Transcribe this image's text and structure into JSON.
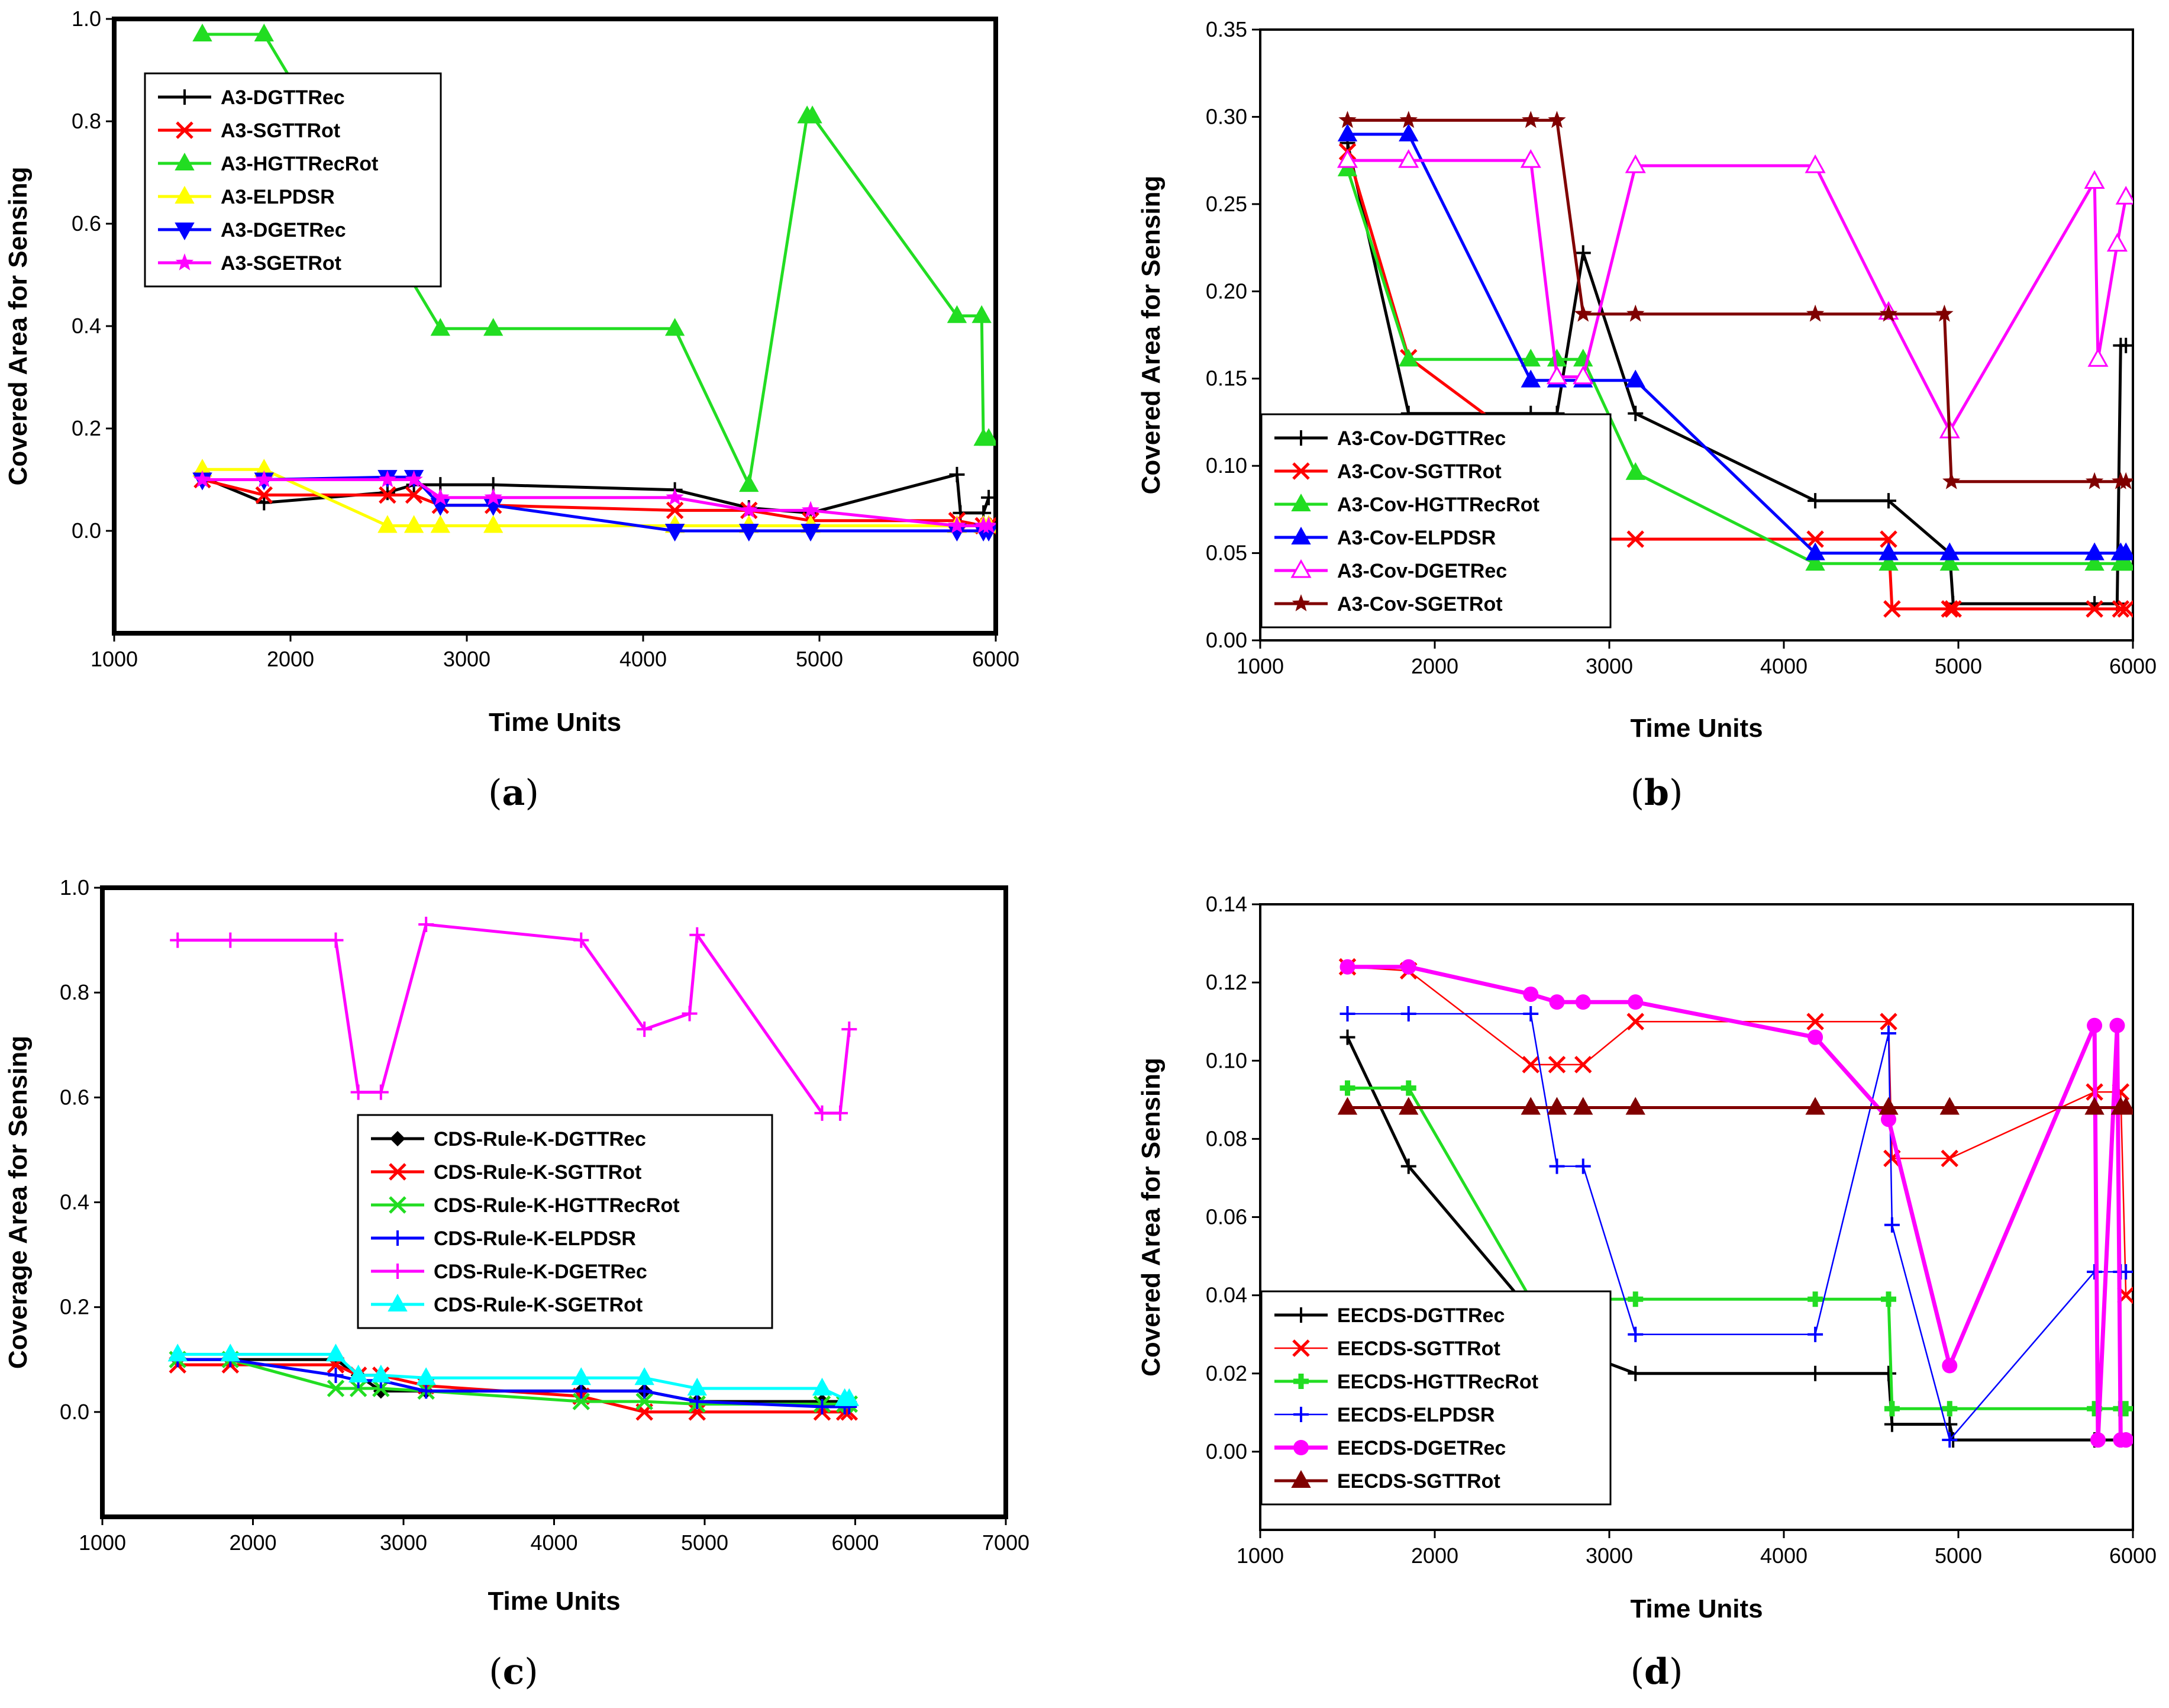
{
  "chart_data": [
    {
      "id": "a",
      "type": "line",
      "panel_label": "a",
      "xlabel": "Time Units",
      "ylabel": "Covered Area for Sensing",
      "xlim": [
        1000,
        6000
      ],
      "ylim": [
        -0.2,
        1.0
      ],
      "xticks": [
        1000,
        2000,
        3000,
        4000,
        5000,
        6000
      ],
      "yticks": [
        0.0,
        0.2,
        0.4,
        0.6,
        0.8,
        1.0
      ],
      "ytick_labels": [
        "0.0",
        "0.2",
        "0.4",
        "0.6",
        "0.8",
        "1.0"
      ],
      "legend_position": "top-left",
      "series": [
        {
          "name": "A3-DGTTRec",
          "color": "#000000",
          "marker": "plus",
          "x": [
            1500,
            1850,
            2550,
            2700,
            2850,
            3150,
            4180,
            4600,
            4950,
            5780,
            5800,
            5930,
            5960
          ],
          "y": [
            0.105,
            0.055,
            0.075,
            0.09,
            0.09,
            0.09,
            0.08,
            0.045,
            0.035,
            0.11,
            0.035,
            0.035,
            0.065
          ]
        },
        {
          "name": "A3-SGTTRot",
          "color": "#ff0000",
          "marker": "x",
          "x": [
            1500,
            1850,
            2550,
            2700,
            2850,
            3150,
            4180,
            4600,
            4950,
            5780,
            5930,
            5960
          ],
          "y": [
            0.1,
            0.07,
            0.07,
            0.07,
            0.05,
            0.05,
            0.04,
            0.04,
            0.02,
            0.02,
            0.01,
            0.01
          ]
        },
        {
          "name": "A3-HGTTRecRot",
          "color": "#22dd22",
          "marker": "triangle-up",
          "x": [
            1500,
            1850,
            2850,
            3150,
            4180,
            4600,
            4930,
            4960,
            5780,
            5920,
            5930,
            5960
          ],
          "y": [
            0.97,
            0.97,
            0.395,
            0.395,
            0.395,
            0.09,
            0.81,
            0.81,
            0.42,
            0.42,
            0.18,
            0.18
          ]
        },
        {
          "name": "A3-ELPDSR",
          "color": "#ffff00",
          "marker": "triangle-up",
          "x": [
            1500,
            1850,
            2550,
            2700,
            2850,
            3150,
            4180,
            4600,
            4950,
            5780,
            5930,
            5960
          ],
          "y": [
            0.12,
            0.12,
            0.01,
            0.01,
            0.01,
            0.01,
            0.01,
            0.01,
            0.01,
            0.01,
            0.01,
            0.01
          ]
        },
        {
          "name": "A3-DGETRec",
          "color": "#0000ff",
          "marker": "triangle-down",
          "x": [
            1500,
            1850,
            2550,
            2700,
            2850,
            3150,
            4180,
            4600,
            4950,
            5780,
            5930,
            5960
          ],
          "y": [
            0.1,
            0.1,
            0.105,
            0.105,
            0.05,
            0.05,
            0.0,
            0.0,
            0.0,
            0.0,
            0.0,
            0.0
          ]
        },
        {
          "name": "A3-SGETRot",
          "color": "#ff00ff",
          "marker": "star",
          "x": [
            1500,
            1850,
            2550,
            2700,
            2850,
            3150,
            4180,
            4600,
            4950,
            5780,
            5930,
            5960
          ],
          "y": [
            0.1,
            0.1,
            0.1,
            0.1,
            0.065,
            0.065,
            0.065,
            0.04,
            0.04,
            0.01,
            0.01,
            0.01
          ]
        }
      ]
    },
    {
      "id": "b",
      "type": "line",
      "panel_label": "b",
      "xlabel": "Time Units",
      "ylabel": "Covered Area for Sensing",
      "xlim": [
        1000,
        6000
      ],
      "ylim": [
        0.0,
        0.35
      ],
      "xticks": [
        1000,
        2000,
        3000,
        4000,
        5000,
        6000
      ],
      "yticks": [
        0.0,
        0.05,
        0.1,
        0.15,
        0.2,
        0.25,
        0.3,
        0.35
      ],
      "ytick_labels": [
        "0.00",
        "0.05",
        "0.10",
        "0.15",
        "0.20",
        "0.25",
        "0.30",
        "0.35"
      ],
      "legend_position": "bottom-left",
      "series": [
        {
          "name": "A3-Cov-DGTTRec",
          "color": "#000000",
          "marker": "plus",
          "x": [
            1500,
            1850,
            2550,
            2700,
            2850,
            3150,
            4180,
            4600,
            4950,
            4970,
            5780,
            5910,
            5930,
            5960
          ],
          "y": [
            0.285,
            0.13,
            0.13,
            0.13,
            0.222,
            0.13,
            0.08,
            0.08,
            0.05,
            0.021,
            0.021,
            0.021,
            0.169,
            0.169
          ]
        },
        {
          "name": "A3-Cov-SGTTRot",
          "color": "#ff0000",
          "marker": "x",
          "x": [
            1500,
            1850,
            2550,
            2700,
            2850,
            3150,
            4180,
            4600,
            4620,
            4950,
            4970,
            5780,
            5930,
            5960
          ],
          "y": [
            0.28,
            0.162,
            0.11,
            0.058,
            0.058,
            0.058,
            0.058,
            0.058,
            0.018,
            0.018,
            0.018,
            0.018,
            0.018,
            0.018
          ]
        },
        {
          "name": "A3-Cov-HGTTRecRot",
          "color": "#22dd22",
          "marker": "triangle-up",
          "x": [
            1500,
            1850,
            2550,
            2700,
            2850,
            3150,
            4180,
            4600,
            4950,
            5780,
            5930,
            5960
          ],
          "y": [
            0.27,
            0.161,
            0.161,
            0.161,
            0.161,
            0.096,
            0.044,
            0.044,
            0.044,
            0.044,
            0.044,
            0.044
          ]
        },
        {
          "name": "A3-Cov-ELPDSR",
          "color": "#0000ff",
          "marker": "triangle-up",
          "x": [
            1500,
            1850,
            2550,
            2700,
            2850,
            3150,
            4180,
            4600,
            4950,
            5780,
            5930,
            5960
          ],
          "y": [
            0.29,
            0.29,
            0.149,
            0.149,
            0.149,
            0.149,
            0.05,
            0.05,
            0.05,
            0.05,
            0.05,
            0.05
          ]
        },
        {
          "name": "A3-Cov-DGETRec",
          "color": "#ff00ff",
          "marker": "triangle-up-open",
          "x": [
            1500,
            1850,
            2550,
            2700,
            2850,
            3150,
            4180,
            4600,
            4950,
            5780,
            5800,
            5910,
            5960
          ],
          "y": [
            0.275,
            0.275,
            0.275,
            0.151,
            0.151,
            0.272,
            0.272,
            0.188,
            0.12,
            0.263,
            0.161,
            0.227,
            0.254
          ]
        },
        {
          "name": "A3-Cov-SGETRot",
          "color": "#800000",
          "marker": "star",
          "x": [
            1500,
            1850,
            2550,
            2700,
            2850,
            3150,
            4180,
            4600,
            4920,
            4960,
            5780,
            5930,
            5960
          ],
          "y": [
            0.298,
            0.298,
            0.298,
            0.298,
            0.187,
            0.187,
            0.187,
            0.187,
            0.187,
            0.091,
            0.091,
            0.091,
            0.091
          ]
        }
      ]
    },
    {
      "id": "c",
      "type": "line",
      "panel_label": "c",
      "xlabel": "Time Units",
      "ylabel": "Coverage Area for Sensing",
      "xlim": [
        1000,
        7000
      ],
      "ylim": [
        -0.2,
        1.0
      ],
      "xticks": [
        1000,
        2000,
        3000,
        4000,
        5000,
        6000,
        7000
      ],
      "yticks": [
        0.0,
        0.2,
        0.4,
        0.6,
        0.8,
        1.0
      ],
      "ytick_labels": [
        "0.0",
        "0.2",
        "0.4",
        "0.6",
        "0.8",
        "1.0"
      ],
      "legend_position": "center-right",
      "series": [
        {
          "name": "CDS-Rule-K-DGTTRec",
          "color": "#000000",
          "marker": "diamond",
          "x": [
            1500,
            1850,
            2550,
            2700,
            2850,
            3150,
            4180,
            4600,
            4950,
            5780,
            5930,
            5960
          ],
          "y": [
            0.1,
            0.1,
            0.1,
            0.07,
            0.04,
            0.04,
            0.04,
            0.04,
            0.02,
            0.02,
            0.02,
            0.02
          ]
        },
        {
          "name": "CDS-Rule-K-SGTTRot",
          "color": "#ff0000",
          "marker": "x",
          "x": [
            1500,
            1850,
            2550,
            2700,
            2850,
            3150,
            4180,
            4600,
            4950,
            5780,
            5930,
            5960
          ],
          "y": [
            0.09,
            0.09,
            0.09,
            0.07,
            0.07,
            0.05,
            0.03,
            0.0,
            0.0,
            0.0,
            0.0,
            0.0
          ]
        },
        {
          "name": "CDS-Rule-K-HGTTRecRot",
          "color": "#22dd22",
          "marker": "x",
          "x": [
            1500,
            1850,
            2550,
            2700,
            2850,
            3150,
            4180,
            4600,
            4950,
            5780,
            5930,
            5960
          ],
          "y": [
            0.1,
            0.1,
            0.045,
            0.045,
            0.045,
            0.04,
            0.02,
            0.02,
            0.015,
            0.015,
            0.015,
            0.015
          ]
        },
        {
          "name": "CDS-Rule-K-ELPDSR",
          "color": "#0000ff",
          "marker": "plus",
          "x": [
            1500,
            1850,
            2550,
            2700,
            2850,
            3150,
            4180,
            4600,
            4950,
            5780,
            5930,
            5960
          ],
          "y": [
            0.1,
            0.1,
            0.07,
            0.06,
            0.06,
            0.04,
            0.04,
            0.04,
            0.02,
            0.01,
            0.01,
            0.01
          ]
        },
        {
          "name": "CDS-Rule-K-DGETRec",
          "color": "#ff00ff",
          "marker": "plus",
          "x": [
            1500,
            1850,
            2550,
            2700,
            2850,
            3150,
            4180,
            4600,
            4900,
            4950,
            5780,
            5900,
            5960
          ],
          "y": [
            0.9,
            0.9,
            0.9,
            0.61,
            0.61,
            0.93,
            0.9,
            0.73,
            0.76,
            0.91,
            0.57,
            0.57,
            0.73
          ]
        },
        {
          "name": "CDS-Rule-K-SGETRot",
          "color": "#00ffff",
          "marker": "triangle-up",
          "x": [
            1500,
            1850,
            2550,
            2700,
            2850,
            3150,
            4180,
            4600,
            4950,
            5780,
            5930,
            5960
          ],
          "y": [
            0.11,
            0.11,
            0.11,
            0.07,
            0.07,
            0.065,
            0.065,
            0.065,
            0.045,
            0.045,
            0.025,
            0.025
          ]
        }
      ]
    },
    {
      "id": "d",
      "type": "line",
      "panel_label": "d",
      "xlabel": "Time Units",
      "ylabel": "Covered Area for Sensing",
      "xlim": [
        1000,
        6000
      ],
      "ylim": [
        -0.02,
        0.14
      ],
      "xticks": [
        1000,
        2000,
        3000,
        4000,
        5000,
        6000
      ],
      "yticks": [
        0.0,
        0.02,
        0.04,
        0.06,
        0.08,
        0.1,
        0.12,
        0.14
      ],
      "ytick_labels": [
        "0.00",
        "0.02",
        "0.04",
        "0.06",
        "0.08",
        "0.10",
        "0.12",
        "0.14"
      ],
      "legend_position": "bottom-left",
      "series": [
        {
          "name": "EECDS-DGTTRec",
          "color": "#000000",
          "marker": "plus",
          "x": [
            1500,
            1850,
            2550,
            2700,
            2850,
            3150,
            4180,
            4600,
            4620,
            4950,
            4970,
            5780,
            5930,
            5960
          ],
          "y": [
            0.106,
            0.073,
            0.036,
            0.033,
            0.025,
            0.02,
            0.02,
            0.02,
            0.007,
            0.007,
            0.003,
            0.003,
            0.003,
            0.003
          ]
        },
        {
          "name": "EECDS-SGTTRot",
          "color": "#ff0000",
          "marker": "x",
          "x": [
            1500,
            1850,
            2550,
            2700,
            2850,
            3150,
            4180,
            4600,
            4620,
            4950,
            5780,
            5930,
            5960
          ],
          "y": [
            0.124,
            0.123,
            0.099,
            0.099,
            0.099,
            0.11,
            0.11,
            0.11,
            0.075,
            0.075,
            0.092,
            0.092,
            0.04
          ]
        },
        {
          "name": "EECDS-HGTTRecRot",
          "color": "#22dd22",
          "marker": "plus-bold",
          "x": [
            1500,
            1850,
            2550,
            2700,
            2850,
            3150,
            4180,
            4600,
            4620,
            4950,
            5780,
            5930,
            5960
          ],
          "y": [
            0.093,
            0.093,
            0.039,
            0.039,
            0.039,
            0.039,
            0.039,
            0.039,
            0.011,
            0.011,
            0.011,
            0.011,
            0.011
          ]
        },
        {
          "name": "EECDS-ELPDSR",
          "color": "#0000ff",
          "marker": "plus",
          "x": [
            1500,
            1850,
            2550,
            2700,
            2850,
            3150,
            4180,
            4600,
            4620,
            4950,
            5780,
            5930,
            5960
          ],
          "y": [
            0.112,
            0.112,
            0.112,
            0.073,
            0.073,
            0.03,
            0.03,
            0.107,
            0.058,
            0.003,
            0.046,
            0.046,
            0.046
          ]
        },
        {
          "name": "EECDS-DGETRec",
          "color": "#ff00ff",
          "marker": "circle",
          "x": [
            1500,
            1850,
            2550,
            2700,
            2850,
            3150,
            4180,
            4600,
            4950,
            5780,
            5800,
            5910,
            5930,
            5960
          ],
          "y": [
            0.124,
            0.124,
            0.117,
            0.115,
            0.115,
            0.115,
            0.106,
            0.085,
            0.022,
            0.109,
            0.003,
            0.109,
            0.003,
            0.003
          ]
        },
        {
          "name": "EECDS-SGTTRot",
          "color": "#800000",
          "marker": "triangle-up",
          "x": [
            1500,
            1850,
            2550,
            2700,
            2850,
            3150,
            4180,
            4600,
            4950,
            5780,
            5930,
            5960
          ],
          "y": [
            0.088,
            0.088,
            0.088,
            0.088,
            0.088,
            0.088,
            0.088,
            0.088,
            0.088,
            0.088,
            0.088,
            0.088
          ]
        }
      ]
    }
  ]
}
